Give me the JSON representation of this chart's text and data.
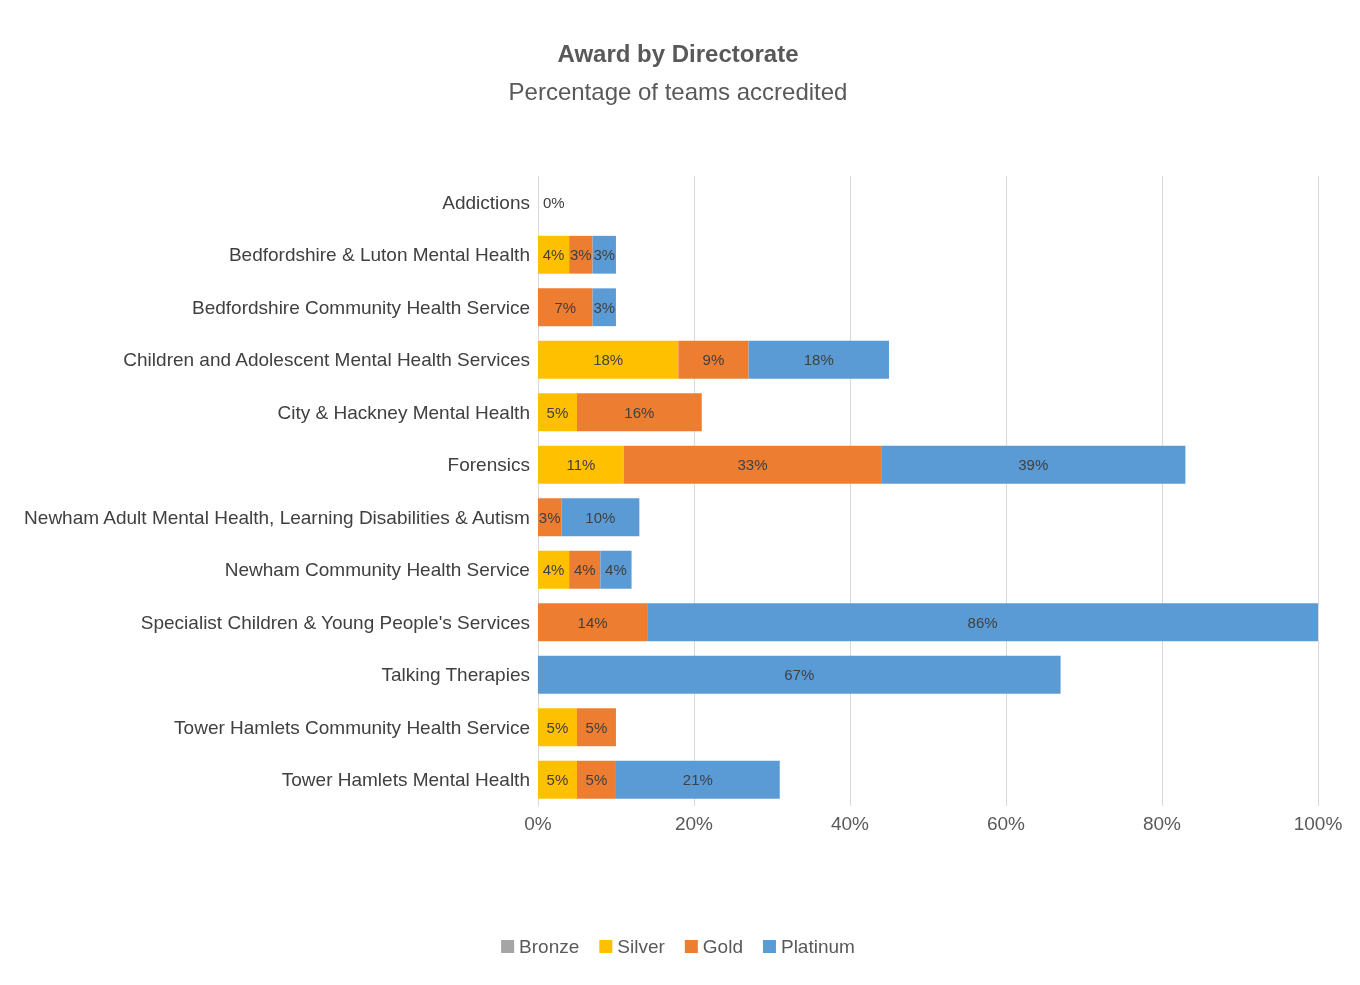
{
  "chart_data": {
    "type": "bar",
    "orientation": "horizontal",
    "stacked": true,
    "title": "Award by Directorate",
    "subtitle": "Percentage of teams accredited",
    "categories": [
      "Addictions",
      "Bedfordshire & Luton Mental Health",
      "Bedfordshire Community Health Service",
      "Children and Adolescent Mental Health Services",
      "City & Hackney Mental Health",
      "Forensics",
      "Newham Adult Mental Health, Learning Disabilities & Autism",
      "Newham Community Health Service",
      "Specialist Children & Young People's Services",
      "Talking Therapies",
      "Tower Hamlets Community Health Service",
      "Tower Hamlets Mental Health"
    ],
    "series": [
      {
        "name": "Bronze",
        "color": "#a5a5a5",
        "values": [
          0,
          null,
          null,
          null,
          null,
          null,
          null,
          null,
          null,
          null,
          null,
          null
        ],
        "value_labels": [
          "0%",
          null,
          null,
          null,
          null,
          null,
          null,
          null,
          null,
          null,
          null,
          null
        ]
      },
      {
        "name": "Silver",
        "color": "#ffc000",
        "values": [
          null,
          4,
          null,
          18,
          5,
          11,
          null,
          4,
          null,
          null,
          5,
          5
        ],
        "value_labels": [
          null,
          "4%",
          null,
          "18%",
          "5%",
          "11%",
          null,
          "4%",
          null,
          null,
          "5%",
          "5%"
        ]
      },
      {
        "name": "Gold",
        "color": "#ed7d31",
        "values": [
          null,
          3,
          7,
          9,
          16,
          33,
          3,
          4,
          14,
          null,
          5,
          5
        ],
        "value_labels": [
          null,
          "3%",
          "7%",
          "9%",
          "16%",
          "33%",
          "3%",
          "4%",
          "14%",
          null,
          "5%",
          "5%"
        ]
      },
      {
        "name": "Platinum",
        "color": "#5b9bd5",
        "values": [
          null,
          3,
          3,
          18,
          null,
          39,
          10,
          4,
          86,
          67,
          null,
          21
        ],
        "value_labels": [
          null,
          "3%",
          "3%",
          "18%",
          null,
          "39%",
          "10%",
          "4%",
          "86%",
          "67%",
          null,
          "21%"
        ]
      }
    ],
    "xlim": [
      0,
      100
    ],
    "xticks": [
      {
        "value": 0,
        "label": "0%"
      },
      {
        "value": 20,
        "label": "20%"
      },
      {
        "value": 40,
        "label": "40%"
      },
      {
        "value": 60,
        "label": "60%"
      },
      {
        "value": 80,
        "label": "80%"
      },
      {
        "value": 100,
        "label": "100%"
      }
    ],
    "grid": "x",
    "legend": "bottom"
  }
}
